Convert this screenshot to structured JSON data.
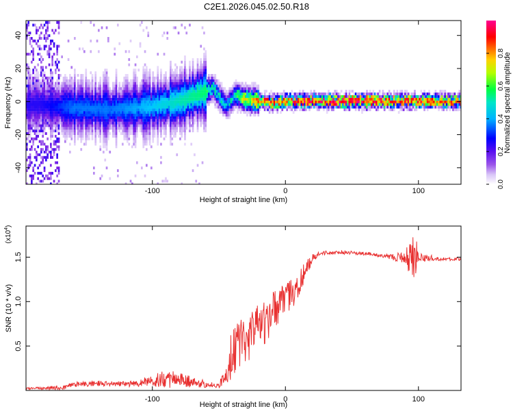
{
  "title": "C2E1.2026.045.02.50.R18",
  "colors": {
    "snr_line": "#e83030",
    "axis": "#000000"
  },
  "chart_data": [
    {
      "type": "heatmap",
      "title": "C2E1.2026.045.02.50.R18",
      "xlabel": "Height of straight line (km)",
      "ylabel": "Frequency (Hz)",
      "xlim": [
        -195,
        132
      ],
      "ylim": [
        -50,
        49
      ],
      "x_ticks": [
        -100,
        0,
        100
      ],
      "x_tick_labels": [
        "-100",
        "0",
        "100"
      ],
      "y_ticks": [
        -40,
        -20,
        0,
        20,
        40
      ],
      "y_tick_labels": [
        "-40",
        "-20",
        "0",
        "20",
        "40"
      ],
      "colorbar": {
        "label": "Normalized spectral amplitude",
        "range": [
          0,
          1
        ],
        "ticks": [
          0.0,
          0.2,
          0.4,
          0.6,
          0.8
        ],
        "tick_labels": [
          "0.0",
          "0.2",
          "0.4",
          "0.6",
          "0.8"
        ],
        "colormap": [
          "#ffffff",
          "#c6a4f2",
          "#7a1ee6",
          "#0000ff",
          "#00c8ff",
          "#00ff60",
          "#c8ff00",
          "#ffb000",
          "#ff0000",
          "#ff0080"
        ]
      },
      "ridge": {
        "description_x": [
          -185,
          -160,
          -130,
          -100,
          -80,
          -60,
          -55,
          -45,
          -38,
          -30,
          -20,
          -10,
          0,
          20,
          50,
          80,
          100,
          132
        ],
        "center_hz": [
          -2,
          -4,
          -5,
          -3,
          0,
          6,
          8,
          -3,
          4,
          1,
          0,
          -1,
          0,
          0,
          0,
          0,
          0,
          0
        ],
        "peak_amplitude": [
          0.3,
          0.4,
          0.4,
          0.45,
          0.5,
          0.55,
          0.5,
          0.45,
          0.5,
          0.7,
          0.8,
          0.9,
          0.85,
          0.95,
          0.95,
          0.9,
          0.85,
          0.8
        ]
      }
    },
    {
      "type": "line",
      "xlabel": "Height of straight line (km)",
      "ylabel": "SNR (10 * v/v)",
      "y_multiplier_label": "(x10",
      "y_multiplier_exp": "4",
      "xlim": [
        -195,
        132
      ],
      "ylim": [
        0,
        1.85
      ],
      "x_ticks": [
        -100,
        0,
        100
      ],
      "x_tick_labels": [
        "-100",
        "0",
        "100"
      ],
      "y_ticks": [
        0.5,
        1.0,
        1.5
      ],
      "y_tick_labels": [
        "0.5",
        "1.0",
        "1.5"
      ],
      "series": [
        {
          "name": "SNR",
          "x": [
            -195,
            -170,
            -160,
            -140,
            -120,
            -100,
            -90,
            -80,
            -60,
            -50,
            -45,
            -40,
            -35,
            -30,
            -25,
            -20,
            -15,
            -10,
            -5,
            0,
            5,
            10,
            15,
            20,
            25,
            30,
            40,
            50,
            60,
            70,
            80,
            90,
            95,
            98,
            100,
            110,
            120,
            132
          ],
          "values": [
            0.02,
            0.03,
            0.06,
            0.08,
            0.07,
            0.1,
            0.13,
            0.12,
            0.07,
            0.05,
            0.15,
            0.45,
            0.55,
            0.6,
            0.65,
            0.7,
            0.75,
            0.85,
            0.95,
            1.0,
            1.1,
            1.2,
            1.35,
            1.48,
            1.53,
            1.55,
            1.55,
            1.55,
            1.54,
            1.52,
            1.5,
            1.5,
            1.48,
            1.48,
            1.5,
            1.48,
            1.48,
            1.48
          ],
          "noise": [
            0.01,
            0.03,
            0.03,
            0.03,
            0.03,
            0.06,
            0.12,
            0.08,
            0.04,
            0.03,
            0.12,
            0.3,
            0.3,
            0.3,
            0.3,
            0.25,
            0.25,
            0.25,
            0.22,
            0.2,
            0.18,
            0.15,
            0.1,
            0.05,
            0.03,
            0.02,
            0.02,
            0.02,
            0.02,
            0.02,
            0.03,
            0.08,
            0.25,
            0.3,
            0.05,
            0.02,
            0.02,
            0.02
          ]
        }
      ]
    }
  ]
}
